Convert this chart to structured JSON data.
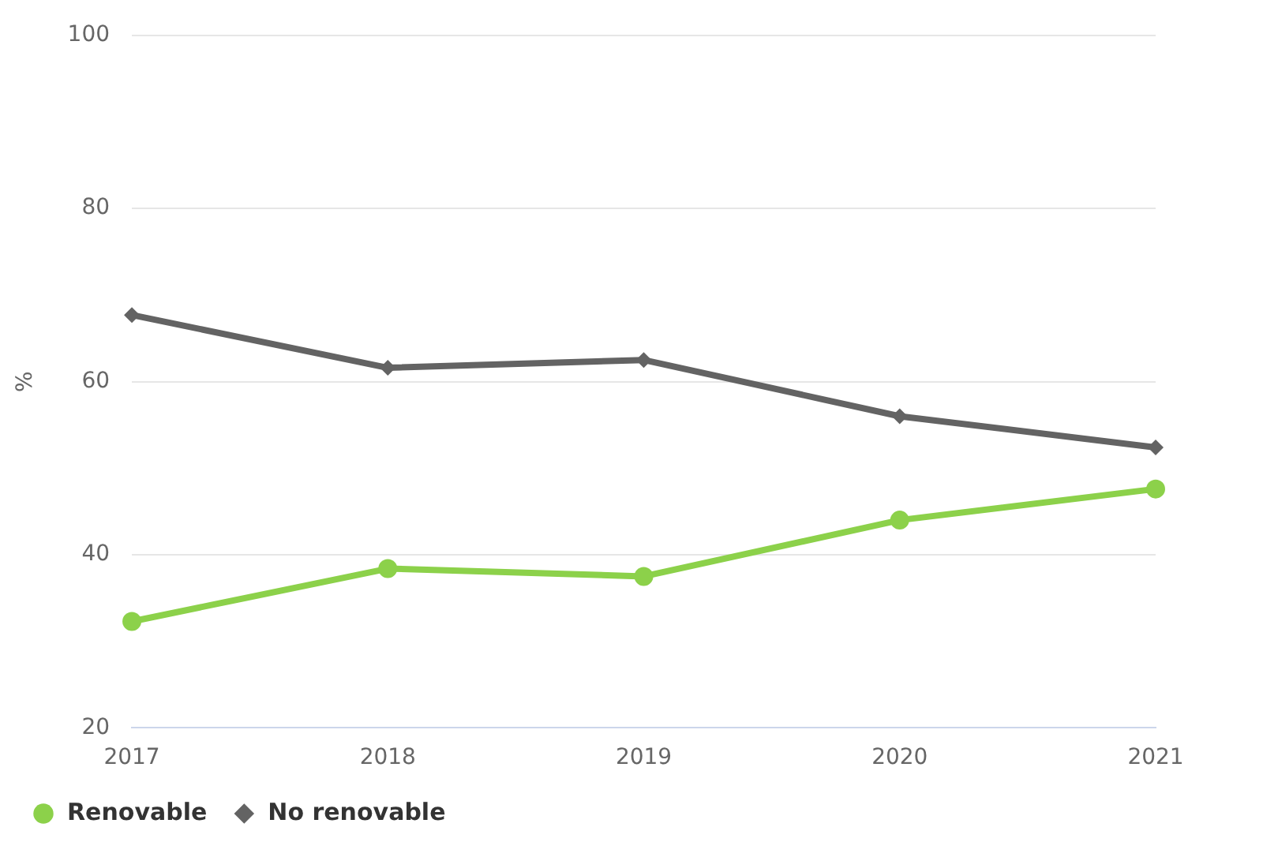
{
  "chart_data": {
    "type": "line",
    "ylabel": "%",
    "categories": [
      "2017",
      "2018",
      "2019",
      "2020",
      "2021"
    ],
    "series": [
      {
        "name": "Renovable",
        "color": "#8cd14a",
        "marker": "circle",
        "values": [
          32.3,
          38.4,
          37.5,
          44.0,
          47.6
        ]
      },
      {
        "name": "No renovable",
        "color": "#636363",
        "marker": "diamond",
        "values": [
          67.7,
          61.6,
          62.5,
          56.0,
          52.4
        ]
      }
    ],
    "ylim": [
      20,
      100
    ],
    "yticks": [
      20,
      40,
      60,
      80,
      100
    ],
    "grid": "y",
    "legend": "bottom left",
    "line_style": "solid"
  }
}
